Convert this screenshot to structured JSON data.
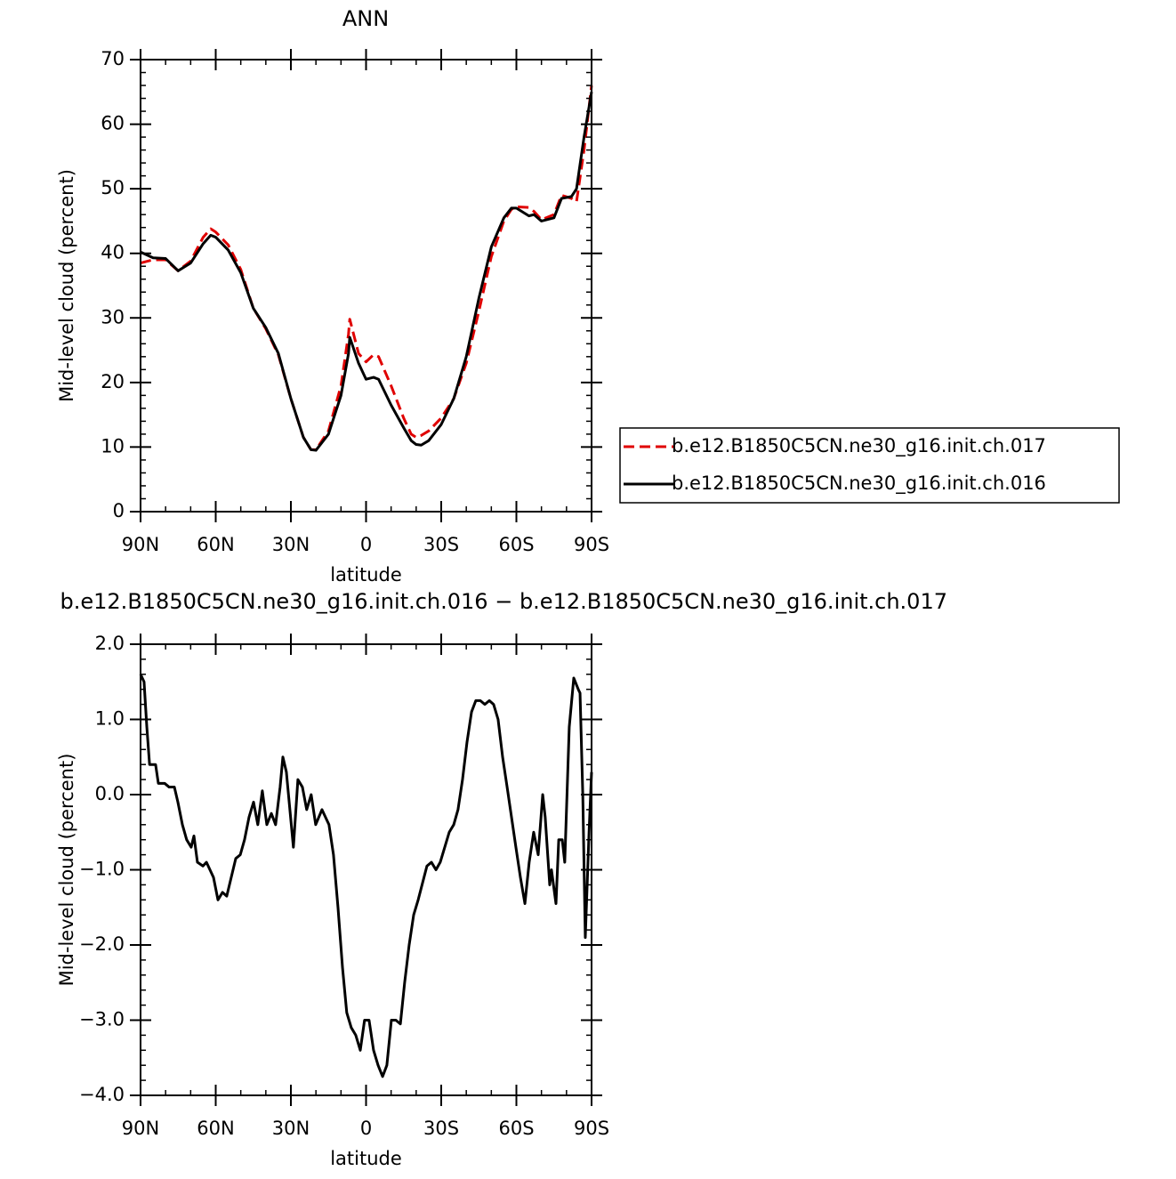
{
  "chart_data": [
    {
      "type": "line",
      "title": "ANN",
      "xlabel": "latitude",
      "ylabel": "Mid-level cloud (percent)",
      "x": [
        90,
        85,
        80,
        75,
        70,
        65,
        62,
        60,
        55,
        50,
        45,
        40,
        35,
        30,
        25,
        22,
        20,
        15,
        10,
        7,
        6.5,
        3,
        0,
        -3,
        -5,
        -10,
        -15,
        -18,
        -20,
        -22,
        -25,
        -30,
        -35,
        -40,
        -45,
        -50,
        -55,
        -58,
        -60,
        -65,
        -67,
        -70,
        -75,
        -78,
        -82,
        -84,
        -87,
        -90
      ],
      "series": [
        {
          "name": "b.e12.B1850C5CN.ne30_g16.init.ch.017",
          "color": "#e00000",
          "dash": true,
          "values": [
            38.5,
            39,
            39,
            37.3,
            38.8,
            42.5,
            43.8,
            43.3,
            41.3,
            37.5,
            31.5,
            28.3,
            24.3,
            17.5,
            11.5,
            9.6,
            9.6,
            12.5,
            19.5,
            27.5,
            29.8,
            24.5,
            23.2,
            24.3,
            24,
            19.5,
            14.5,
            12,
            11.5,
            11.8,
            12.5,
            14.5,
            17.5,
            23,
            31,
            39.5,
            45,
            46.8,
            47.2,
            47.1,
            46.5,
            45.2,
            46,
            49,
            48.5,
            48,
            56,
            66
          ]
        },
        {
          "name": "b.e12.B1850C5CN.ne30_g16.init.ch.016",
          "color": "#000000",
          "dash": false,
          "values": [
            40.2,
            39.3,
            39.2,
            37.3,
            38.5,
            41.5,
            42.8,
            42.5,
            40.5,
            37,
            31.5,
            28.5,
            24.5,
            17.5,
            11.5,
            9.6,
            9.5,
            12,
            18,
            24.5,
            27,
            23,
            20.5,
            20.8,
            20.5,
            16.5,
            13,
            11,
            10.4,
            10.3,
            11,
            13.5,
            17.5,
            24,
            33,
            41,
            45.5,
            47,
            47,
            45.8,
            46,
            45,
            45.5,
            48.5,
            48.8,
            50,
            58,
            65
          ]
        }
      ],
      "xlim": [
        90,
        -90
      ],
      "xticks": [
        {
          "value": 90,
          "label": "90N"
        },
        {
          "value": 60,
          "label": "60N"
        },
        {
          "value": 30,
          "label": "30N"
        },
        0,
        {
          "value": -30,
          "label": "30S"
        },
        {
          "value": -60,
          "label": "60S"
        },
        {
          "value": -90,
          "label": "90S"
        }
      ],
      "ylim": [
        0,
        70
      ],
      "yticks": [
        0,
        10,
        20,
        30,
        40,
        50,
        60,
        70
      ],
      "legend": "right"
    },
    {
      "type": "line",
      "title": "b.e12.B1850C5CN.ne30_g16.init.ch.016 − b.e12.B1850C5CN.ne30_g16.init.ch.017",
      "xlabel": "latitude",
      "ylabel": "Mid-level cloud (percent)",
      "x": [
        90,
        88.6,
        87.5,
        86.4,
        84,
        82.9,
        80.4,
        78.6,
        76.5,
        75.1,
        73.3,
        71.6,
        69.8,
        68.7,
        67.3,
        65.1,
        63.7,
        60.9,
        59.1,
        57.3,
        55.6,
        53.8,
        52,
        50.2,
        48.5,
        46.7,
        44.9,
        43.2,
        41.4,
        39.6,
        37.8,
        36.1,
        34.3,
        33.2,
        31.8,
        29,
        27.2,
        25.4,
        23.7,
        21.9,
        20.1,
        17.6,
        14.8,
        13,
        11.2,
        9.4,
        7.7,
        5.9,
        4.1,
        2.3,
        0.6,
        -1.2,
        -3,
        -4.8,
        -6.6,
        -8.3,
        -10.1,
        -11.9,
        -13.7,
        -15.4,
        -17.2,
        -19,
        -20.8,
        -24.3,
        -26.1,
        -27.9,
        -29.6,
        -31.4,
        -33.2,
        -35,
        -36.7,
        -38.5,
        -40.3,
        -42.1,
        -43.8,
        -45.6,
        -47.4,
        -49.2,
        -50.9,
        -52.7,
        -54.5,
        -56.3,
        -59.8,
        -61.6,
        -63.4,
        -65.1,
        -66.9,
        -68.7,
        -70.5,
        -71.5,
        -73.3,
        -74,
        -75.8,
        -76.9,
        -78.3,
        -79.3,
        -81.1,
        -82.9,
        -84.7,
        -85.4,
        -86.5,
        -87.5,
        -89,
        -90
      ],
      "series": [
        {
          "color": "#000000",
          "dash": false,
          "values": [
            1.6,
            1.5,
            0.9,
            0.4,
            0.4,
            0.15,
            0.15,
            0.1,
            0.1,
            -0.1,
            -0.4,
            -0.6,
            -0.7,
            -0.55,
            -0.9,
            -0.95,
            -0.9,
            -1.1,
            -1.4,
            -1.3,
            -1.35,
            -1.1,
            -0.85,
            -0.8,
            -0.6,
            -0.3,
            -0.1,
            -0.4,
            0.05,
            -0.4,
            -0.25,
            -0.4,
            0.1,
            0.5,
            0.3,
            -0.7,
            0.2,
            0.1,
            -0.2,
            0,
            -0.4,
            -0.2,
            -0.4,
            -0.8,
            -1.5,
            -2.3,
            -2.9,
            -3.1,
            -3.2,
            -3.4,
            -3,
            -3,
            -3.4,
            -3.6,
            -3.75,
            -3.6,
            -3,
            -3,
            -3.05,
            -2.5,
            -2,
            -1.6,
            -1.4,
            -0.95,
            -0.9,
            -1,
            -0.9,
            -0.7,
            -0.5,
            -0.4,
            -0.2,
            0.2,
            0.7,
            1.1,
            1.25,
            1.25,
            1.2,
            1.25,
            1.2,
            1,
            0.5,
            0.1,
            -0.7,
            -1.1,
            -1.45,
            -0.9,
            -0.5,
            -0.8,
            0,
            -0.3,
            -1.2,
            -1,
            -1.45,
            -0.6,
            -0.6,
            -0.9,
            0.9,
            1.55,
            1.4,
            1.35,
            0,
            -1.9,
            -0.5,
            0.3
          ]
        }
      ],
      "xlim": [
        90,
        -90
      ],
      "xticks": [
        {
          "value": 90,
          "label": "90N"
        },
        {
          "value": 60,
          "label": "60N"
        },
        {
          "value": 30,
          "label": "30N"
        },
        0,
        {
          "value": -30,
          "label": "30S"
        },
        {
          "value": -60,
          "label": "60S"
        },
        {
          "value": -90,
          "label": "90S"
        }
      ],
      "ylim": [
        -4,
        2
      ],
      "yticks": [
        {
          "value": -4,
          "label": "−4.0"
        },
        {
          "value": -3,
          "label": "−3.0"
        },
        {
          "value": -2,
          "label": "−2.0"
        },
        {
          "value": -1,
          "label": "−1.0"
        },
        {
          "value": 0,
          "label": "0.0"
        },
        {
          "value": 1,
          "label": "1.0"
        },
        {
          "value": 2,
          "label": "2.0"
        }
      ]
    }
  ]
}
